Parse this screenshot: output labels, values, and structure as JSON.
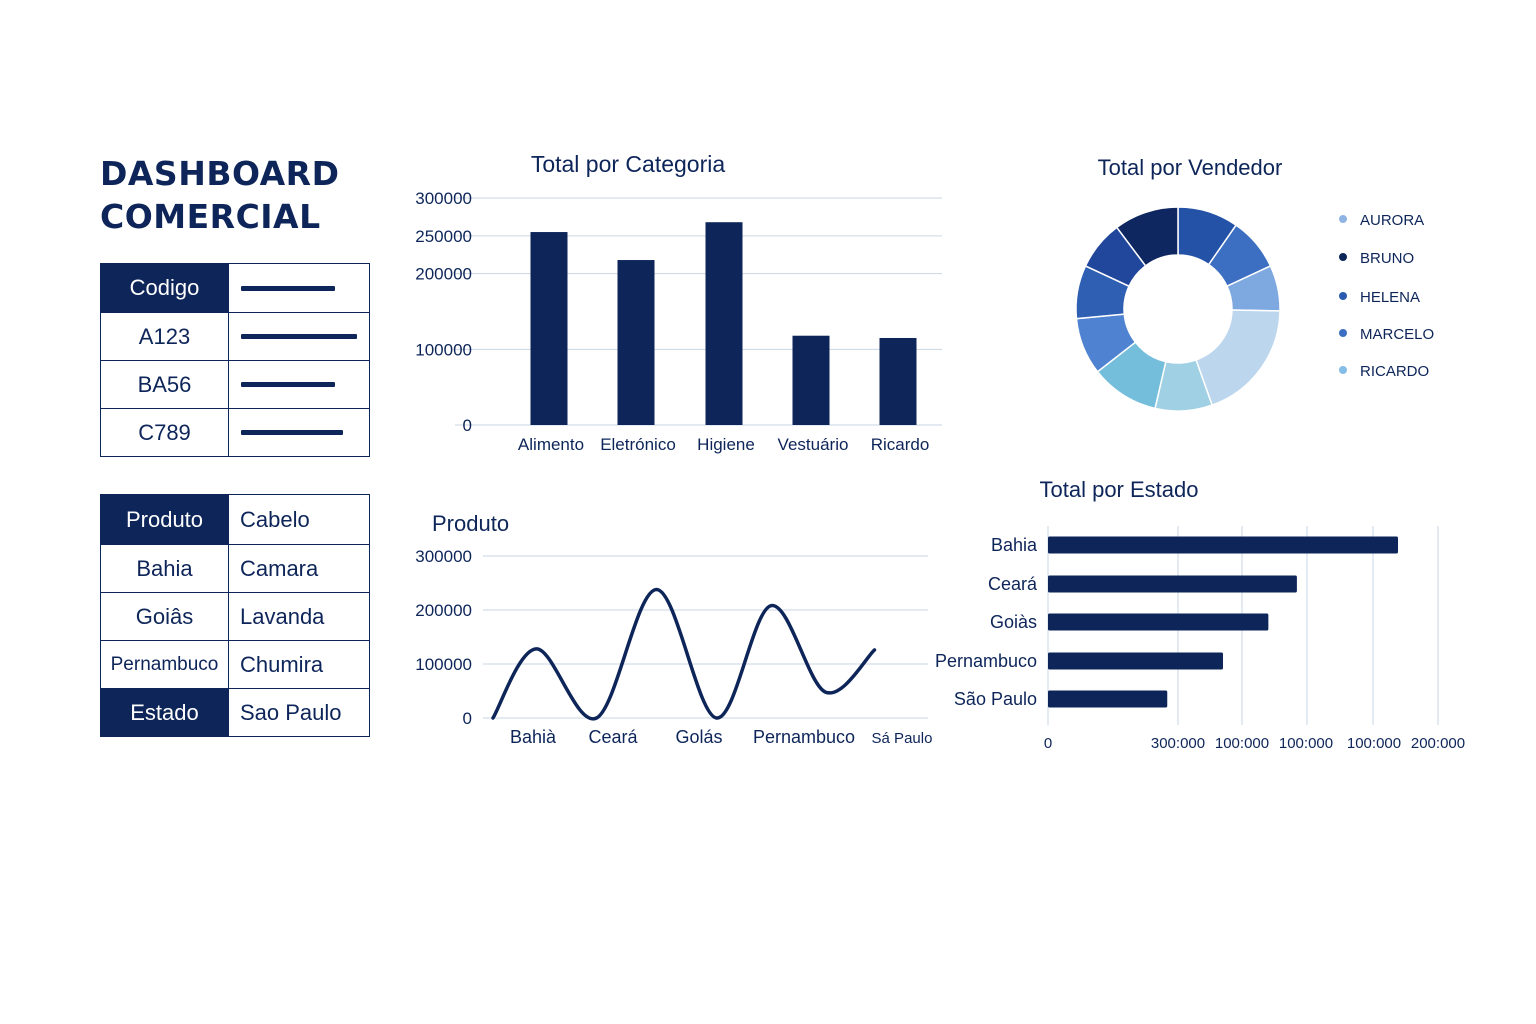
{
  "header": {
    "title_line1": "DASHBOARD",
    "title_line2": "COMERCIAL"
  },
  "table_codigo": {
    "header": "Codigo",
    "rows": [
      "A123",
      "BA56",
      "C789"
    ]
  },
  "table_produto": {
    "rows": [
      {
        "left": "Produto",
        "right": "Cabelo",
        "left_header": true
      },
      {
        "left": "Bahia",
        "right": "Camara",
        "left_header": false
      },
      {
        "left": "Goiâs",
        "right": "Lavanda",
        "left_header": false
      },
      {
        "left": "Pernambuco",
        "right": "Chumira",
        "left_header": false
      },
      {
        "left": "Estado",
        "right": "Sao Paulo",
        "left_header": true
      }
    ]
  },
  "colors": {
    "navy": "#0d2559",
    "grid": "#c9d6e3"
  },
  "chart_data": [
    {
      "id": "categoria",
      "type": "bar",
      "title": "Total por Categoria",
      "categories": [
        "Alimento",
        "Eletrónico",
        "Higiene",
        "Vestuário",
        "Ricardo"
      ],
      "values": [
        255000,
        218000,
        268000,
        118000,
        115000
      ],
      "yticks": [
        "300000",
        "250000",
        "200000",
        "100000",
        "0"
      ],
      "ylim": [
        0,
        300000
      ],
      "grid": true
    },
    {
      "id": "vendedor",
      "type": "pie",
      "title": "Total por Vendedor",
      "legend": [
        "AURORA",
        "BRUNO",
        "HELENA",
        "MARCELO",
        "RICARDO"
      ],
      "legend_colors": [
        "#8fb4e3",
        "#0d2559",
        "#2b5bb0",
        "#3c6fc2",
        "#84bde6"
      ],
      "slices": [
        {
          "value": 8,
          "color": "#2352a6"
        },
        {
          "value": 7,
          "color": "#3c6fc2"
        },
        {
          "value": 6,
          "color": "#7ea8e0"
        },
        {
          "value": 16,
          "color": "#bcd6ee"
        },
        {
          "value": 7.5,
          "color": "#9fd0e3"
        },
        {
          "value": 9,
          "color": "#74bedc"
        },
        {
          "value": 7.5,
          "color": "#4f83d2"
        },
        {
          "value": 7,
          "color": "#2f5fb3"
        },
        {
          "value": 6.5,
          "color": "#21479c"
        },
        {
          "value": 8.5,
          "color": "#0e2761"
        }
      ],
      "legend_position": "right"
    },
    {
      "id": "produto",
      "type": "line",
      "title": "Produto",
      "categories": [
        "Bahià",
        "Ceará",
        "Golás",
        "Pernambuco",
        "Sá Paulo"
      ],
      "points": [
        [
          0,
          0
        ],
        [
          0.4,
          128000
        ],
        [
          0.95,
          0
        ],
        [
          1.5,
          238000
        ],
        [
          2.05,
          0
        ],
        [
          2.55,
          208000
        ],
        [
          3.05,
          48000
        ],
        [
          3.5,
          126000
        ]
      ],
      "yticks": [
        "300000",
        "200000",
        "100000",
        "0"
      ],
      "ylim": [
        0,
        300000
      ],
      "grid": true
    },
    {
      "id": "estado",
      "type": "bar",
      "orientation": "horizontal",
      "title": "Total por Estado",
      "categories": [
        "Bahia",
        "Ceará",
        "Goiàs",
        "Pernambuco",
        "São Paulo"
      ],
      "values": [
        270000,
        192000,
        170000,
        135000,
        92000
      ],
      "xticks": [
        "0",
        "300:000",
        "100:000",
        "100:000",
        "100:000",
        "200:000"
      ],
      "grid": true
    }
  ]
}
